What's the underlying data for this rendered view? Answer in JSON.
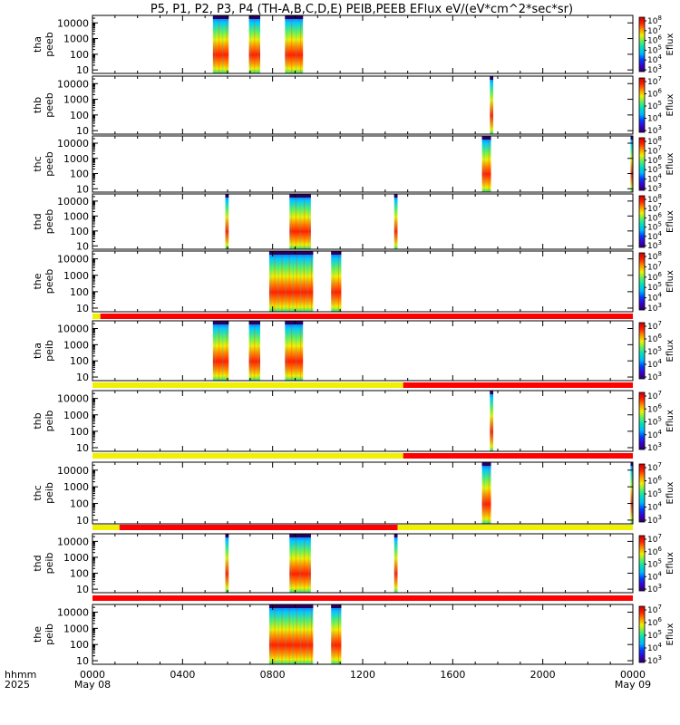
{
  "chart_data": {
    "type": "heatmap",
    "title": "P5, P1, P2, P3, P4 (TH-A,B,C,D,E) PEIB,PEEB EFlux eV/(eV*cm^2*sec*sr)",
    "colorbar_label": "Eflux",
    "y_scale": "log",
    "yrange": [
      6,
      30000
    ],
    "ytick_labels": [
      "10",
      "100",
      "1000",
      "10000"
    ],
    "x_axis": {
      "row1_label": "hhmm",
      "row2_label": "2025",
      "range_hours": [
        0,
        24
      ],
      "tick_labels": [
        "0000",
        "0400",
        "0800",
        "1200",
        "1600",
        "2000",
        "0000"
      ],
      "date_labels": [
        {
          "at": 0,
          "text": "May 08"
        },
        {
          "at": 24,
          "text": "May 09"
        }
      ]
    },
    "colormap": [
      "#2a0060",
      "#3a00d0",
      "#0040ff",
      "#00b8ff",
      "#00e0c0",
      "#60f060",
      "#f0f000",
      "#ff9000",
      "#ff2000",
      "#c80000"
    ],
    "panels": [
      {
        "name": "tha peeb",
        "label1": "tha",
        "label2": "peeb",
        "cbar_min_exp": 3,
        "cbar_max_exp": 8,
        "cbar_exps": [
          3,
          4,
          5,
          6,
          7,
          8
        ],
        "intervals": [
          [
            5.35,
            6.05
          ],
          [
            6.95,
            7.45
          ],
          [
            8.55,
            9.35
          ]
        ]
      },
      {
        "name": "thb peeb",
        "label1": "thb",
        "label2": "peeb",
        "cbar_min_exp": 3,
        "cbar_max_exp": 7,
        "cbar_exps": [
          3,
          4,
          5,
          6,
          7
        ],
        "intervals": [
          [
            17.65,
            17.8
          ]
        ]
      },
      {
        "name": "thc peeb",
        "label1": "thc",
        "label2": "peeb",
        "cbar_min_exp": 3,
        "cbar_max_exp": 8,
        "cbar_exps": [
          3,
          4,
          5,
          6,
          7,
          8
        ],
        "intervals": [
          [
            17.3,
            17.7
          ],
          [
            23.9,
            24.0
          ]
        ]
      },
      {
        "name": "thd peeb",
        "label1": "thd",
        "label2": "peeb",
        "cbar_min_exp": 3,
        "cbar_max_exp": 8,
        "cbar_exps": [
          3,
          4,
          5,
          6,
          7,
          8
        ],
        "intervals": [
          [
            5.9,
            6.05
          ],
          [
            8.75,
            9.7
          ],
          [
            13.4,
            13.55
          ]
        ]
      },
      {
        "name": "the peeb",
        "label1": "the",
        "label2": "peeb",
        "cbar_min_exp": 3,
        "cbar_max_exp": 8,
        "cbar_exps": [
          3,
          4,
          5,
          6,
          7,
          8
        ],
        "intervals": [
          [
            7.85,
            9.8
          ],
          [
            10.6,
            11.05
          ]
        ],
        "mode_bar": [
          {
            "from": 0,
            "to": 0.35,
            "state": "yellow"
          },
          {
            "from": 0.35,
            "to": 24,
            "state": "red"
          }
        ]
      },
      {
        "name": "tha peib",
        "label1": "tha",
        "label2": "peib",
        "cbar_min_exp": 3,
        "cbar_max_exp": 7,
        "cbar_exps": [
          3,
          4,
          5,
          6,
          7
        ],
        "intervals": [
          [
            5.35,
            6.05
          ],
          [
            6.95,
            7.45
          ],
          [
            8.55,
            9.35
          ]
        ],
        "mode_bar": [
          {
            "from": 0,
            "to": 13.8,
            "state": "yellow"
          },
          {
            "from": 13.8,
            "to": 24,
            "state": "red"
          }
        ]
      },
      {
        "name": "thb peib",
        "label1": "thb",
        "label2": "peib",
        "cbar_min_exp": 3,
        "cbar_max_exp": 7,
        "cbar_exps": [
          3,
          4,
          5,
          6,
          7
        ],
        "intervals": [
          [
            17.65,
            17.8
          ]
        ],
        "mode_bar": [
          {
            "from": 0,
            "to": 13.8,
            "state": "yellow"
          },
          {
            "from": 13.8,
            "to": 24,
            "state": "red"
          }
        ]
      },
      {
        "name": "thc peib",
        "label1": "thc",
        "label2": "peib",
        "cbar_min_exp": 3,
        "cbar_max_exp": 7,
        "cbar_exps": [
          3,
          4,
          5,
          6,
          7
        ],
        "intervals": [
          [
            17.3,
            17.7
          ],
          [
            23.9,
            24.0
          ]
        ],
        "mode_bar": [
          {
            "from": 0,
            "to": 1.2,
            "state": "yellow"
          },
          {
            "from": 1.2,
            "to": 13.55,
            "state": "red"
          },
          {
            "from": 13.55,
            "to": 24,
            "state": "yellow"
          }
        ]
      },
      {
        "name": "thd peib",
        "label1": "thd",
        "label2": "peib",
        "cbar_min_exp": 3,
        "cbar_max_exp": 7,
        "cbar_exps": [
          3,
          4,
          5,
          6,
          7
        ],
        "intervals": [
          [
            5.9,
            6.05
          ],
          [
            8.75,
            9.7
          ],
          [
            13.4,
            13.55
          ]
        ],
        "mode_bar": [
          {
            "from": 0,
            "to": 24,
            "state": "red"
          }
        ]
      },
      {
        "name": "the peib",
        "label1": "the",
        "label2": "peib",
        "cbar_min_exp": 3,
        "cbar_max_exp": 7,
        "cbar_exps": [
          3,
          4,
          5,
          6,
          7
        ],
        "intervals": [
          [
            7.85,
            9.8
          ],
          [
            10.6,
            11.05
          ]
        ]
      }
    ],
    "mode_bar_colors": {
      "yellow": "#f0f000",
      "red": "#ff0000"
    }
  }
}
